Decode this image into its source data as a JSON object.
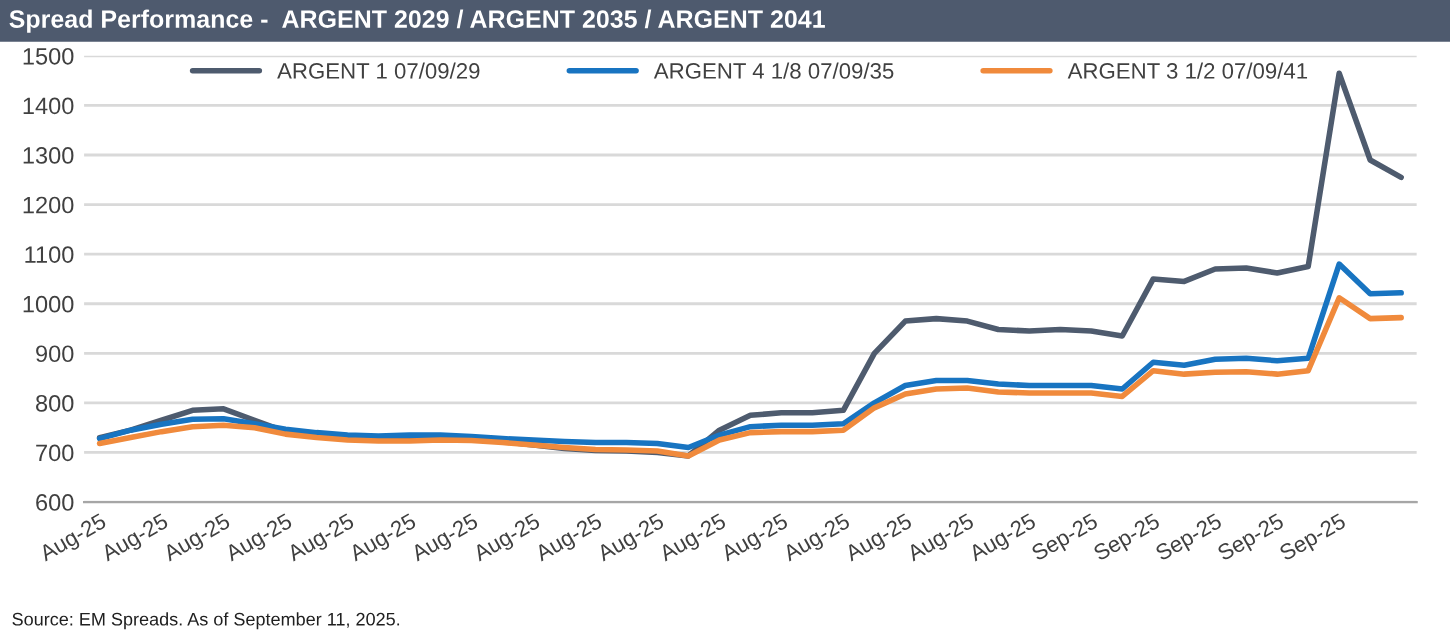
{
  "chart_data": {
    "type": "line",
    "title": "Spread Performance -  ARGENT 2029 / ARGENT 2035 / ARGENT 2041",
    "categories": [
      "Aug-25",
      null,
      "Aug-25",
      null,
      "Aug-25",
      null,
      "Aug-25",
      null,
      "Aug-25",
      null,
      "Aug-25",
      null,
      "Aug-25",
      null,
      "Aug-25",
      null,
      "Aug-25",
      null,
      "Aug-25",
      null,
      "Aug-25",
      null,
      "Aug-25",
      null,
      "Aug-25",
      null,
      "Aug-25",
      null,
      "Aug-25",
      null,
      "Aug-25",
      null,
      "Sep-25",
      null,
      "Sep-25",
      null,
      "Sep-25",
      null,
      "Sep-25",
      null,
      "Sep-25",
      null,
      null
    ],
    "series": [
      {
        "name": "ARGENT 1 07/09/29",
        "color": "#4e5b6e",
        "values": [
          730,
          745,
          765,
          785,
          788,
          765,
          742,
          735,
          730,
          728,
          728,
          728,
          727,
          722,
          715,
          708,
          704,
          703,
          700,
          693,
          745,
          775,
          780,
          780,
          785,
          900,
          965,
          970,
          965,
          948,
          945,
          948,
          945,
          935,
          1050,
          1045,
          1070,
          1072,
          1062,
          1075,
          1465,
          1290,
          1255
        ]
      },
      {
        "name": "ARGENT 4 1/8 07/09/35",
        "color": "#1874c1",
        "values": [
          728,
          745,
          757,
          767,
          768,
          758,
          747,
          740,
          735,
          733,
          735,
          735,
          732,
          728,
          725,
          722,
          720,
          720,
          718,
          710,
          735,
          752,
          755,
          755,
          758,
          800,
          835,
          845,
          845,
          838,
          835,
          835,
          835,
          828,
          882,
          876,
          888,
          890,
          885,
          890,
          1080,
          1020,
          1022
        ]
      },
      {
        "name": "ARGENT 3 1/2 07/09/41",
        "color": "#f08a3c",
        "values": [
          718,
          730,
          742,
          752,
          755,
          750,
          737,
          730,
          725,
          723,
          723,
          725,
          724,
          720,
          715,
          710,
          706,
          705,
          703,
          693,
          725,
          740,
          742,
          742,
          745,
          790,
          818,
          828,
          830,
          822,
          820,
          820,
          820,
          813,
          865,
          858,
          862,
          863,
          858,
          865,
          1012,
          970,
          972
        ]
      }
    ],
    "ylim": [
      600,
      1500
    ],
    "yticks": [
      600,
      700,
      800,
      900,
      1000,
      1100,
      1200,
      1300,
      1400,
      1500
    ],
    "grid": "y",
    "legend": "top",
    "marker": "none",
    "line_style": "solid",
    "annotations": [
      "Source: EM Spreads. As of September 11, 2025."
    ]
  }
}
